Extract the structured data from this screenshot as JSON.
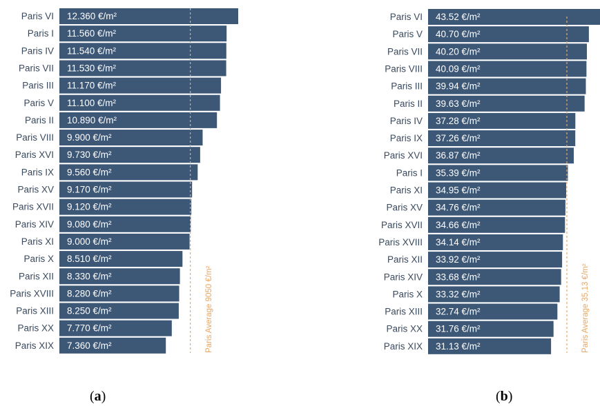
{
  "colors": {
    "bar": "#3d5777",
    "avg_line": "#e8a765",
    "category_text": "#3a4a5e"
  },
  "chart_data": [
    {
      "type": "bar",
      "orientation": "horizontal",
      "panel": "a",
      "categories": [
        "Paris VI",
        "Paris I",
        "Paris IV",
        "Paris VII",
        "Paris III",
        "Paris V",
        "Paris II",
        "Paris VIII",
        "Paris XVI",
        "Paris IX",
        "Paris XV",
        "Paris XVII",
        "Paris XIV",
        "Paris XI",
        "Paris X",
        "Paris XII",
        "Paris XVIII",
        "Paris XIII",
        "Paris XX",
        "Paris XIX"
      ],
      "values": [
        12360,
        11560,
        11540,
        11530,
        11170,
        11100,
        10890,
        9900,
        9730,
        9560,
        9170,
        9120,
        9080,
        9000,
        8510,
        8330,
        8280,
        8250,
        7770,
        7360
      ],
      "value_labels": [
        "12.360 €/m²",
        "11.560 €/m²",
        "11.540 €/m²",
        "11.530 €/m²",
        "11.170 €/m²",
        "11.100 €/m²",
        "10.890 €/m²",
        "9.900 €/m²",
        "9.730 €/m²",
        "9.560 €/m²",
        "9.170 €/m²",
        "9.120 €/m²",
        "9.080 €/m²",
        "9.000 €/m²",
        "8.510 €/m²",
        "8.330 €/m²",
        "8.280 €/m²",
        "8.250 €/m²",
        "7.770 €/m²",
        "7.360 €/m²"
      ],
      "reference_line": {
        "value": 9050,
        "label": "Paris Average 9050 €/m²"
      },
      "xlim": [
        0,
        12360
      ]
    },
    {
      "type": "bar",
      "orientation": "horizontal",
      "panel": "b",
      "categories": [
        "Paris VI",
        "Paris V",
        "Paris VII",
        "Paris VIII",
        "Paris III",
        "Paris II",
        "Paris IV",
        "Paris IX",
        "Paris XVI",
        "Paris I",
        "Paris XI",
        "Paris XV",
        "Paris XVII",
        "Paris XVIII",
        "Paris XII",
        "Paris XIV",
        "Paris X",
        "Paris XIII",
        "Paris XX",
        "Paris XIX"
      ],
      "values": [
        43.52,
        40.7,
        40.2,
        40.09,
        39.94,
        39.63,
        37.28,
        37.26,
        36.87,
        35.39,
        34.95,
        34.76,
        34.66,
        34.14,
        33.92,
        33.68,
        33.32,
        32.74,
        31.76,
        31.13
      ],
      "value_labels": [
        "43.52 €/m²",
        "40.70 €/m²",
        "40.20 €/m²",
        "40.09 €/m²",
        "39.94 €/m²",
        "39.63 €/m²",
        "37.28 €/m²",
        "37.26 €/m²",
        "36.87 €/m²",
        "35.39 €/m²",
        "34.95 €/m²",
        "34.76 €/m²",
        "34.66 €/m²",
        "34.14 €/m²",
        "33.92 €/m²",
        "33.68 €/m²",
        "33.32 €/m²",
        "32.74 €/m²",
        "31.76 €/m²",
        "31.13 €/m²"
      ],
      "reference_line": {
        "value": 35.13,
        "label": "Paris Average 35,13 €/m²"
      },
      "xlim": [
        0,
        43.52
      ]
    }
  ],
  "panel_labels": {
    "a": "a",
    "b": "b"
  }
}
